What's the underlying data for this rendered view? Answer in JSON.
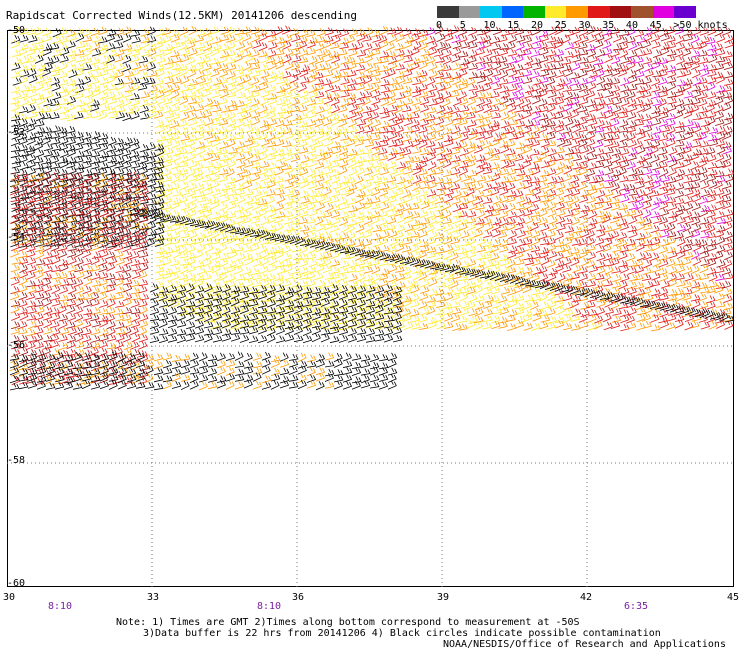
{
  "title": "Rapidscat Corrected Winds(12.5KM) 20141206 descending",
  "legend": {
    "labels": [
      "0",
      "5",
      "10",
      "15",
      "20",
      "25",
      "30",
      "35",
      "40",
      "45",
      ">50 knots"
    ],
    "colors": [
      "#3a3a3a",
      "#9a9a9a",
      "#00c8f0",
      "#0064ff",
      "#00b400",
      "#ffeb2b",
      "#ff9a00",
      "#e01818",
      "#a01010",
      "#a0522d",
      "#e000e0",
      "#6a00d0"
    ]
  },
  "map": {
    "lat_labels": [
      "-50",
      "-52",
      "-54",
      "-56",
      "-58",
      "-60"
    ],
    "lon_labels": [
      "30",
      "33",
      "36",
      "39",
      "42",
      "45"
    ],
    "pass_times": [
      "8:10",
      "8:10",
      "6:35"
    ]
  },
  "footer": {
    "line1": "Note: 1) Times are GMT 2)Times along bottom correspond to measurement at -50S",
    "line2": "3)Data buffer is 22 hrs from 20141206 4) Black circles indicate possible contamination",
    "line3": "NOAA/NESDIS/Office of Research and Applications"
  }
}
